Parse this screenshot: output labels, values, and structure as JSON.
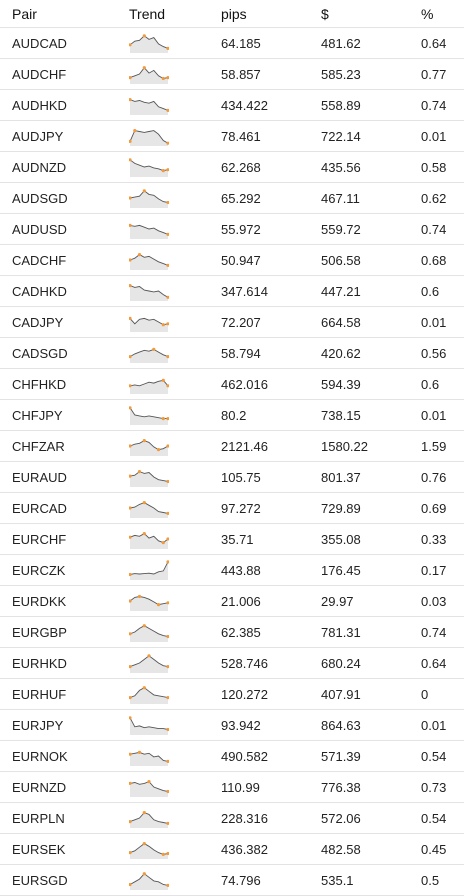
{
  "header": {
    "pair": "Pair",
    "trend": "Trend",
    "pips": "pips",
    "usd": "$",
    "pct": "%"
  },
  "colors": {
    "line": "#555555",
    "fill": "#e6e6e6",
    "dot": "#f29a3a",
    "divider": "#e3e3e3"
  },
  "rows": [
    {
      "pair": "AUDCAD",
      "pips": "64.185",
      "usd": "481.62",
      "pct": "0.64",
      "trend": [
        0.6,
        0.4,
        0.35,
        0.1,
        0.3,
        0.2,
        0.55,
        0.7,
        0.8
      ]
    },
    {
      "pair": "AUDCHF",
      "pips": "58.857",
      "usd": "585.23",
      "pct": "0.77",
      "trend": [
        0.7,
        0.6,
        0.5,
        0.15,
        0.45,
        0.3,
        0.6,
        0.75,
        0.7
      ]
    },
    {
      "pair": "AUDHKD",
      "pips": "434.422",
      "usd": "558.89",
      "pct": "0.74",
      "trend": [
        0.2,
        0.3,
        0.25,
        0.35,
        0.4,
        0.3,
        0.6,
        0.7,
        0.8
      ]
    },
    {
      "pair": "AUDJPY",
      "pips": "78.461",
      "usd": "722.14",
      "pct": "0.01",
      "trend": [
        0.8,
        0.2,
        0.25,
        0.3,
        0.25,
        0.2,
        0.4,
        0.75,
        0.9
      ]
    },
    {
      "pair": "AUDNZD",
      "pips": "62.268",
      "usd": "435.56",
      "pct": "0.58",
      "trend": [
        0.1,
        0.3,
        0.4,
        0.5,
        0.45,
        0.55,
        0.6,
        0.7,
        0.65
      ]
    },
    {
      "pair": "AUDSGD",
      "pips": "65.292",
      "usd": "467.11",
      "pct": "0.62",
      "trend": [
        0.5,
        0.45,
        0.4,
        0.1,
        0.3,
        0.35,
        0.55,
        0.7,
        0.75
      ]
    },
    {
      "pair": "AUDUSD",
      "pips": "55.972",
      "usd": "559.72",
      "pct": "0.74",
      "trend": [
        0.3,
        0.35,
        0.3,
        0.4,
        0.5,
        0.45,
        0.6,
        0.7,
        0.8
      ]
    },
    {
      "pair": "CADCHF",
      "pips": "50.947",
      "usd": "506.58",
      "pct": "0.68",
      "trend": [
        0.5,
        0.4,
        0.2,
        0.35,
        0.3,
        0.45,
        0.6,
        0.7,
        0.8
      ]
    },
    {
      "pair": "CADHKD",
      "pips": "347.614",
      "usd": "447.21",
      "pct": "0.6",
      "trend": [
        0.2,
        0.3,
        0.25,
        0.45,
        0.5,
        0.55,
        0.5,
        0.7,
        0.85
      ]
    },
    {
      "pair": "CADJPY",
      "pips": "72.207",
      "usd": "664.58",
      "pct": "0.01",
      "trend": [
        0.3,
        0.6,
        0.35,
        0.3,
        0.4,
        0.35,
        0.5,
        0.65,
        0.6
      ]
    },
    {
      "pair": "CADSGD",
      "pips": "58.794",
      "usd": "420.62",
      "pct": "0.56",
      "trend": [
        0.7,
        0.55,
        0.45,
        0.35,
        0.4,
        0.3,
        0.45,
        0.6,
        0.7
      ]
    },
    {
      "pair": "CHFHKD",
      "pips": "462.016",
      "usd": "594.39",
      "pct": "0.6",
      "trend": [
        0.6,
        0.55,
        0.6,
        0.5,
        0.4,
        0.45,
        0.35,
        0.3,
        0.6
      ]
    },
    {
      "pair": "CHFJPY",
      "pips": "80.2",
      "usd": "738.15",
      "pct": "0.01",
      "trend": [
        0.1,
        0.5,
        0.55,
        0.6,
        0.55,
        0.6,
        0.65,
        0.7,
        0.7
      ]
    },
    {
      "pair": "CHFZAR",
      "pips": "2121.46",
      "usd": "1580.22",
      "pct": "1.59",
      "trend": [
        0.5,
        0.4,
        0.35,
        0.2,
        0.3,
        0.55,
        0.7,
        0.65,
        0.5
      ]
    },
    {
      "pair": "EURAUD",
      "pips": "105.75",
      "usd": "801.37",
      "pct": "0.76",
      "trend": [
        0.45,
        0.4,
        0.2,
        0.3,
        0.25,
        0.5,
        0.65,
        0.7,
        0.75
      ]
    },
    {
      "pair": "EURCAD",
      "pips": "97.272",
      "usd": "729.89",
      "pct": "0.69",
      "trend": [
        0.5,
        0.45,
        0.3,
        0.2,
        0.35,
        0.5,
        0.7,
        0.75,
        0.8
      ]
    },
    {
      "pair": "EURCHF",
      "pips": "35.71",
      "usd": "355.08",
      "pct": "0.33",
      "trend": [
        0.4,
        0.3,
        0.35,
        0.2,
        0.45,
        0.35,
        0.6,
        0.7,
        0.5
      ]
    },
    {
      "pair": "EURCZK",
      "pips": "443.88",
      "usd": "176.45",
      "pct": "0.17",
      "trend": [
        0.75,
        0.7,
        0.72,
        0.7,
        0.68,
        0.72,
        0.6,
        0.55,
        0.05
      ]
    },
    {
      "pair": "EURDKK",
      "pips": "21.006",
      "usd": "29.97",
      "pct": "0.03",
      "trend": [
        0.5,
        0.3,
        0.25,
        0.3,
        0.4,
        0.55,
        0.7,
        0.65,
        0.6
      ]
    },
    {
      "pair": "EURGBP",
      "pips": "62.385",
      "usd": "781.31",
      "pct": "0.74",
      "trend": [
        0.6,
        0.5,
        0.3,
        0.15,
        0.3,
        0.45,
        0.6,
        0.7,
        0.75
      ]
    },
    {
      "pair": "EURHKD",
      "pips": "528.746",
      "usd": "680.24",
      "pct": "0.64",
      "trend": [
        0.7,
        0.6,
        0.5,
        0.3,
        0.1,
        0.3,
        0.5,
        0.65,
        0.7
      ]
    },
    {
      "pair": "EURHUF",
      "pips": "120.272",
      "usd": "407.91",
      "pct": "0",
      "trend": [
        0.7,
        0.6,
        0.3,
        0.15,
        0.35,
        0.55,
        0.6,
        0.65,
        0.7
      ]
    },
    {
      "pair": "EURJPY",
      "pips": "93.942",
      "usd": "864.63",
      "pct": "0.01",
      "trend": [
        0.1,
        0.6,
        0.55,
        0.65,
        0.6,
        0.65,
        0.7,
        0.7,
        0.75
      ]
    },
    {
      "pair": "EURNOK",
      "pips": "490.582",
      "usd": "571.39",
      "pct": "0.54",
      "trend": [
        0.4,
        0.35,
        0.3,
        0.4,
        0.35,
        0.55,
        0.5,
        0.75,
        0.8
      ]
    },
    {
      "pair": "EURNZD",
      "pips": "110.99",
      "usd": "776.38",
      "pct": "0.73",
      "trend": [
        0.3,
        0.25,
        0.35,
        0.3,
        0.2,
        0.5,
        0.6,
        0.7,
        0.75
      ]
    },
    {
      "pair": "EURPLN",
      "pips": "228.316",
      "usd": "572.06",
      "pct": "0.54",
      "trend": [
        0.7,
        0.6,
        0.5,
        0.2,
        0.3,
        0.6,
        0.7,
        0.75,
        0.8
      ]
    },
    {
      "pair": "EURSEK",
      "pips": "436.382",
      "usd": "482.58",
      "pct": "0.45",
      "trend": [
        0.7,
        0.6,
        0.4,
        0.2,
        0.35,
        0.55,
        0.7,
        0.8,
        0.75
      ]
    },
    {
      "pair": "EURSGD",
      "pips": "74.796",
      "usd": "535.1",
      "pct": "0.5",
      "trend": [
        0.75,
        0.6,
        0.45,
        0.15,
        0.35,
        0.55,
        0.6,
        0.75,
        0.8
      ]
    }
  ]
}
